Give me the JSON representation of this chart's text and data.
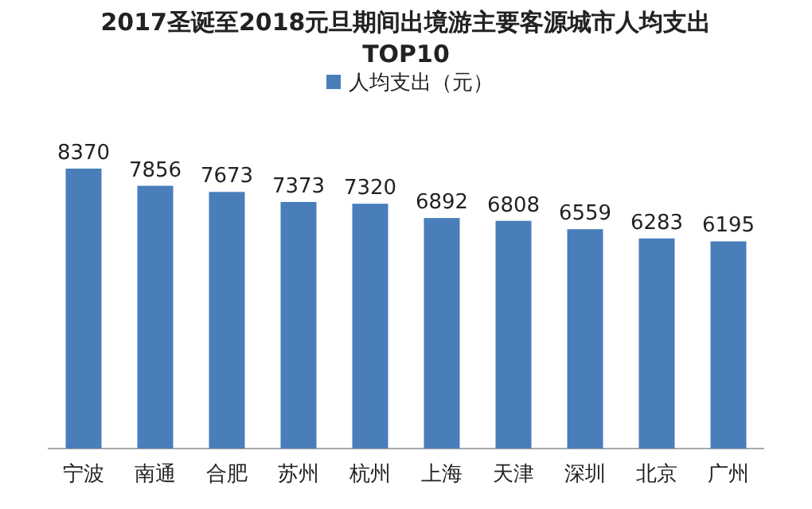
{
  "chart_data": {
    "type": "bar",
    "title": "2017圣诞至2018元旦期间出境游主要客源城市人均支出TOP10",
    "categories": [
      "宁波",
      "南通",
      "合肥",
      "苏州",
      "杭州",
      "上海",
      "天津",
      "深圳",
      "北京",
      "广州"
    ],
    "series": [
      {
        "name": "人均支出（元）",
        "color": "#4a7ebb",
        "values": [
          8370,
          7856,
          7673,
          7373,
          7320,
          6892,
          6808,
          6559,
          6283,
          6195
        ]
      }
    ],
    "data_labels": true,
    "legend": "top"
  }
}
